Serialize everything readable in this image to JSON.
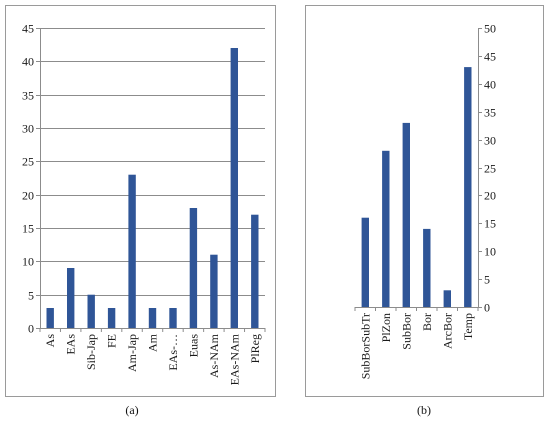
{
  "chart_data": [
    {
      "type": "bar",
      "categories": [
        "As",
        "EAs",
        "Sib-Jap",
        "FE",
        "Am-Jap",
        "Am",
        "EAs-…",
        "Euas",
        "As-NAm",
        "EAs-NAm",
        "PlReg"
      ],
      "values": [
        3,
        9,
        5,
        3,
        23,
        3,
        3,
        18,
        11,
        42,
        17
      ],
      "ylim": [
        0,
        45
      ],
      "yticks": [
        0,
        5,
        10,
        15,
        20,
        25,
        30,
        35,
        40,
        45
      ],
      "y_axis_side": "left",
      "grid": true,
      "legend": "none",
      "bar_color": "#2f5597",
      "caption": "(a)"
    },
    {
      "type": "bar",
      "categories": [
        "SubBorSubTr",
        "PlZon",
        "SubBor",
        "Bor",
        "ArcBor",
        "Temp"
      ],
      "values": [
        16,
        28,
        33,
        14,
        3,
        43
      ],
      "ylim": [
        0,
        50
      ],
      "yticks": [
        0,
        5,
        10,
        15,
        20,
        25,
        30,
        35,
        40,
        45,
        50
      ],
      "y_axis_side": "right",
      "grid": false,
      "legend": "none",
      "bar_color": "#2f5597",
      "caption": "(b)"
    }
  ]
}
